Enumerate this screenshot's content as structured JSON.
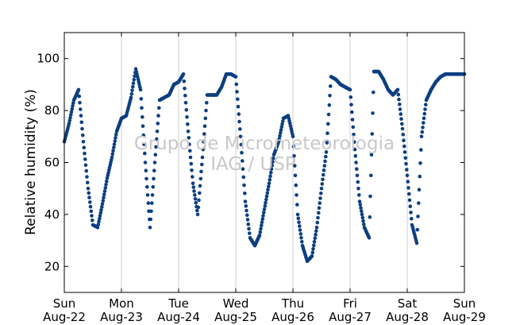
{
  "chart_data": {
    "type": "scatter",
    "ylabel": "Relative humidity (%)",
    "ylim": [
      10,
      110
    ],
    "yticks": [
      20,
      40,
      60,
      80,
      100
    ],
    "xlim": [
      "2010-08-22",
      "2010-08-29"
    ],
    "xticks": [
      {
        "weekday": "Sun",
        "date": "Aug-22"
      },
      {
        "weekday": "Mon",
        "date": "Aug-23"
      },
      {
        "weekday": "Tue",
        "date": "Aug-24"
      },
      {
        "weekday": "Wed",
        "date": "Aug-25"
      },
      {
        "weekday": "Thu",
        "date": "Aug-26"
      },
      {
        "weekday": "Fri",
        "date": "Aug-27"
      },
      {
        "weekday": "Sat",
        "date": "Aug-28"
      },
      {
        "weekday": "Sun",
        "date": "Aug-29"
      }
    ],
    "grid": "vertical",
    "marker_color": "#0c3f80",
    "watermark": [
      "Grupo de Micrometeorologia",
      "IAG / USP"
    ],
    "series": [
      {
        "x": [
          "2010-08-22 00:00",
          "2010-08-22 02:00",
          "2010-08-22 04:00",
          "2010-08-22 06:00",
          "2010-08-22 08:00",
          "2010-08-22 10:00",
          "2010-08-22 12:00",
          "2010-08-22 14:00",
          "2010-08-22 16:00",
          "2010-08-22 18:00",
          "2010-08-22 20:00",
          "2010-08-22 22:00",
          "2010-08-23 00:00",
          "2010-08-23 02:00",
          "2010-08-23 04:00",
          "2010-08-23 06:00",
          "2010-08-23 08:00",
          "2010-08-23 10:00",
          "2010-08-23 12:00",
          "2010-08-23 14:00",
          "2010-08-23 16:00",
          "2010-08-23 18:00",
          "2010-08-23 20:00",
          "2010-08-23 22:00",
          "2010-08-24 00:00",
          "2010-08-24 02:00",
          "2010-08-24 04:00",
          "2010-08-24 06:00",
          "2010-08-24 08:00",
          "2010-08-24 10:00",
          "2010-08-24 12:00",
          "2010-08-24 14:00",
          "2010-08-24 16:00",
          "2010-08-24 18:00",
          "2010-08-24 20:00",
          "2010-08-24 22:00",
          "2010-08-25 00:00",
          "2010-08-25 02:00",
          "2010-08-25 04:00",
          "2010-08-25 06:00",
          "2010-08-25 08:00",
          "2010-08-25 10:00",
          "2010-08-25 12:00",
          "2010-08-25 14:00",
          "2010-08-25 16:00",
          "2010-08-25 18:00",
          "2010-08-25 20:00",
          "2010-08-25 22:00",
          "2010-08-26 00:00",
          "2010-08-26 02:00",
          "2010-08-26 04:00",
          "2010-08-26 06:00",
          "2010-08-26 08:00",
          "2010-08-26 10:00",
          "2010-08-26 12:00",
          "2010-08-26 14:00",
          "2010-08-26 16:00",
          "2010-08-26 18:00",
          "2010-08-26 20:00",
          "2010-08-26 22:00",
          "2010-08-27 00:00",
          "2010-08-27 02:00",
          "2010-08-27 04:00",
          "2010-08-27 06:00",
          "2010-08-27 08:00",
          "2010-08-27 10:00",
          "2010-08-27 12:00",
          "2010-08-27 14:00",
          "2010-08-27 16:00",
          "2010-08-27 18:00",
          "2010-08-27 20:00",
          "2010-08-27 22:00",
          "2010-08-28 00:00",
          "2010-08-28 02:00",
          "2010-08-28 04:00",
          "2010-08-28 06:00",
          "2010-08-28 08:00",
          "2010-08-28 10:00",
          "2010-08-28 12:00",
          "2010-08-28 14:00",
          "2010-08-28 16:00",
          "2010-08-28 18:00",
          "2010-08-28 20:00",
          "2010-08-28 22:00",
          "2010-08-29 00:00"
        ],
        "y": [
          68,
          75,
          84,
          88,
          68,
          50,
          36,
          35,
          44,
          54,
          62,
          72,
          77,
          78,
          85,
          96,
          88,
          60,
          35,
          60,
          84,
          85,
          86,
          90,
          91,
          94,
          72,
          52,
          40,
          62,
          86,
          86,
          86,
          89,
          94,
          94,
          93,
          70,
          45,
          31,
          28,
          32,
          42,
          52,
          63,
          68,
          77,
          78,
          70,
          40,
          28,
          22,
          24,
          35,
          50,
          64,
          93,
          92,
          90,
          89,
          88,
          65,
          45,
          35,
          31,
          95,
          95,
          92,
          88,
          86,
          88,
          73,
          55,
          36,
          29,
          70,
          84,
          88,
          91,
          93,
          94,
          94,
          94,
          94,
          94
        ]
      }
    ]
  }
}
